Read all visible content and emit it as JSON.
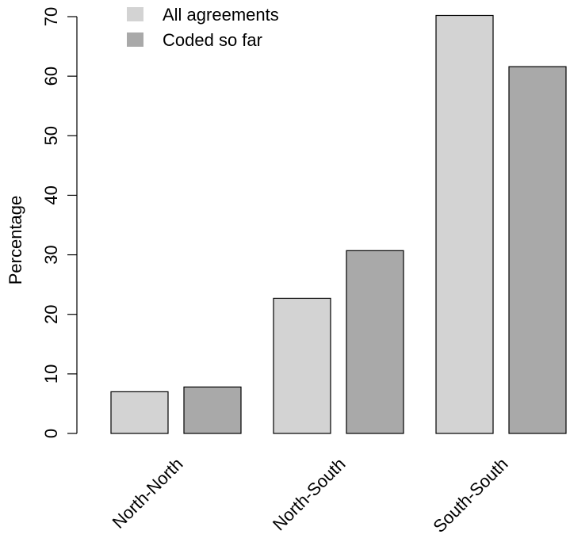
{
  "chart_data": {
    "type": "bar",
    "title": "",
    "xlabel": "",
    "ylabel": "Percentage",
    "categories": [
      "North-North",
      "North-South",
      "South-South"
    ],
    "series": [
      {
        "name": "All agreements",
        "color": "#d3d3d3",
        "values": [
          7.0,
          22.7,
          70.2
        ]
      },
      {
        "name": "Coded so far",
        "color": "#a9a9a9",
        "values": [
          7.8,
          30.7,
          61.6
        ]
      }
    ],
    "ylim": [
      0,
      70
    ],
    "yticks": [
      0,
      10,
      20,
      30,
      40,
      50,
      60,
      70
    ],
    "grid": false,
    "legend_position": "top-left"
  }
}
